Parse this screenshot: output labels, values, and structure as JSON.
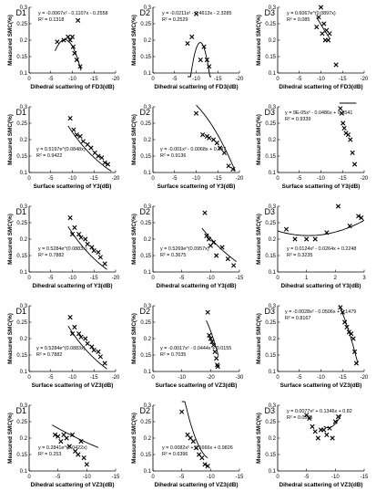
{
  "chart_data": [
    {
      "type": "scatter",
      "panel": "D1",
      "eq": "y = -0.0067x² - 0.1107x - 0.2558",
      "r2": "R² = 0.1318",
      "xlabel": "Dihedral scattering of FD3(dB)",
      "ylabel": "Measured SMC(%)",
      "xlim": [
        0,
        -20
      ],
      "ylim": [
        0.1,
        0.3
      ],
      "xticks": [
        "0",
        "-5",
        "-10",
        "-15",
        "-20"
      ],
      "yticks": [
        "0.1",
        "0.15",
        "0.2",
        "0.25",
        "0.3"
      ],
      "points": [
        [
          -6.5,
          0.195
        ],
        [
          -8,
          0.2
        ],
        [
          -9,
          0.21
        ],
        [
          -9.5,
          0.2
        ],
        [
          -10,
          0.21
        ],
        [
          -10.2,
          0.18
        ],
        [
          -10.5,
          0.16
        ],
        [
          -11,
          0.14
        ],
        [
          -11.3,
          0.26
        ],
        [
          -11.8,
          0.12
        ]
      ],
      "fit": {
        "kind": "poly2",
        "c": [
          -0.0067,
          -0.1107,
          -0.2558
        ],
        "range": [
          -6,
          -12
        ]
      }
    },
    {
      "type": "scatter",
      "panel": "D2",
      "eq": "y = -0.0211x² - 0.4613x - 2.3285",
      "r2": "R² = 0.2529",
      "xlabel": "Dihedral scattering of FD3(dB)",
      "ylabel": "Measured SMC(%)",
      "xlim": [
        0,
        -20
      ],
      "ylim": [
        0.1,
        0.3
      ],
      "xticks": [
        "0",
        "-5",
        "-10",
        "-15",
        "-20"
      ],
      "yticks": [
        "0.1",
        "0.15",
        "0.2",
        "0.25",
        "0.3"
      ],
      "points": [
        [
          -8,
          0.19
        ],
        [
          -9,
          0.21
        ],
        [
          -10,
          0.28
        ],
        [
          -11,
          0.14
        ],
        [
          -11.8,
          0.18
        ],
        [
          -12.5,
          0.14
        ],
        [
          -13,
          0.12
        ]
      ],
      "fit": {
        "kind": "poly2",
        "c": [
          -0.0211,
          -0.4613,
          -2.3285
        ],
        "range": [
          -8,
          -13.5
        ]
      }
    },
    {
      "type": "scatter",
      "panel": "D3",
      "eq": "y = 0.6067e^(0.0897x)",
      "r2": "R² = 0.085",
      "xlabel": "Dihedral scattering of FD3(dB)",
      "ylabel": "Measured SMC(%)",
      "xlim": [
        0,
        -20
      ],
      "ylim": [
        0.1,
        0.3
      ],
      "xticks": [
        "0",
        "-5",
        "-10",
        "-15",
        "-20"
      ],
      "yticks": [
        "0.1",
        "0.15",
        "0.2",
        "0.25",
        "0.3"
      ],
      "points": [
        [
          -9,
          0.24
        ],
        [
          -9.5,
          0.27
        ],
        [
          -10,
          0.3
        ],
        [
          -10.3,
          0.22
        ],
        [
          -10.7,
          0.25
        ],
        [
          -11,
          0.2
        ],
        [
          -11.3,
          0.23
        ],
        [
          -11.7,
          0.2
        ],
        [
          -12,
          0.22
        ],
        [
          -13.5,
          0.125
        ]
      ],
      "fit": {
        "kind": "exp",
        "a": 0.6067,
        "b": 0.0897,
        "range": [
          -9,
          -12
        ]
      }
    },
    {
      "type": "scatter",
      "panel": "D1",
      "eq": "y = 0.5197e^(0.0848x)",
      "r2": "R² = 0.9422",
      "xlabel": "Surface scattering of Y3(dB)",
      "ylabel": "Measured SMC(%)",
      "xlim": [
        0,
        -20
      ],
      "ylim": [
        0.1,
        0.3
      ],
      "xticks": [
        "0",
        "-5",
        "-10",
        "-15",
        "-20"
      ],
      "yticks": [
        "0.1",
        "0.15",
        "0.2",
        "0.25",
        "0.3"
      ],
      "points": [
        [
          -9.5,
          0.265
        ],
        [
          -10.3,
          0.23
        ],
        [
          -11,
          0.215
        ],
        [
          -11.8,
          0.21
        ],
        [
          -12.5,
          0.195
        ],
        [
          -13.5,
          0.185
        ],
        [
          -14.3,
          0.175
        ],
        [
          -15.2,
          0.16
        ],
        [
          -16,
          0.15
        ],
        [
          -16.8,
          0.145
        ],
        [
          -17.5,
          0.13
        ],
        [
          -18.2,
          0.125
        ]
      ],
      "fit": {
        "kind": "exp",
        "a": 0.5197,
        "b": 0.0848,
        "range": [
          -9,
          -19
        ]
      }
    },
    {
      "type": "scatter",
      "panel": "D2",
      "eq": "y = -0.001x² - 0.0068x + 0.337",
      "r2": "R² = 0.9136",
      "xlabel": "Surface scattering of Y3(dB)",
      "ylabel": "Measured SMC(%)",
      "xlim": [
        0,
        -20
      ],
      "ylim": [
        0.1,
        0.3
      ],
      "xticks": [
        "0",
        "-5",
        "-10",
        "-15",
        "-20"
      ],
      "yticks": [
        "0.1",
        "0.15",
        "0.2",
        "0.25",
        "0.3"
      ],
      "points": [
        [
          -10,
          0.28
        ],
        [
          -11.5,
          0.215
        ],
        [
          -12.5,
          0.21
        ],
        [
          -13,
          0.205
        ],
        [
          -14,
          0.2
        ],
        [
          -14.8,
          0.19
        ],
        [
          -15.5,
          0.175
        ],
        [
          -16.5,
          0.16
        ],
        [
          -17.5,
          0.12
        ],
        [
          -18.5,
          0.11
        ]
      ],
      "fit": {
        "kind": "poly2",
        "c": [
          -0.001,
          -0.0068,
          0.337
        ],
        "range": [
          -10,
          -19
        ]
      }
    },
    {
      "type": "scatter",
      "panel": "D3",
      "eq": "y = 9E-05x² - 0.0486x + 0.9541",
      "r2": "R² = 0.9339",
      "xlabel": "Surface scattering of Y3(dB)",
      "ylabel": "Measured SMC(%)",
      "xlim": [
        0,
        -20
      ],
      "ylim": [
        0.1,
        0.3
      ],
      "xticks": [
        "0",
        "-5",
        "-10",
        "-15",
        "-20"
      ],
      "yticks": [
        "0.1",
        "0.15",
        "0.2",
        "0.25",
        "0.3"
      ],
      "points": [
        [
          -14.5,
          0.295
        ],
        [
          -14.8,
          0.28
        ],
        [
          -15.1,
          0.25
        ],
        [
          -15.4,
          0.235
        ],
        [
          -15.8,
          0.22
        ],
        [
          -16.3,
          0.215
        ],
        [
          -16.8,
          0.2
        ],
        [
          -17.3,
          0.16
        ],
        [
          -17.8,
          0.125
        ]
      ],
      "fit": {
        "kind": "poly2",
        "c": [
          9e-05,
          -0.0486,
          0.9541
        ],
        "range": [
          -14.3,
          -18.2
        ]
      }
    },
    {
      "type": "scatter",
      "panel": "D1",
      "eq": "y = 0.5284e^(0.0883x)",
      "r2": "R² = 0.7882",
      "xlabel": "Dihedral scattering of Y3(dB)",
      "ylabel": "Measured SMC(%)",
      "xlim": [
        0,
        -20
      ],
      "ylim": [
        0.1,
        0.3
      ],
      "xticks": [
        "0",
        "-5",
        "-10",
        "-15",
        "-20"
      ],
      "yticks": [
        "0.1",
        "0.15",
        "0.2",
        "0.25",
        "0.3"
      ],
      "points": [
        [
          -9.5,
          0.265
        ],
        [
          -10,
          0.215
        ],
        [
          -10.5,
          0.235
        ],
        [
          -11.5,
          0.215
        ],
        [
          -12,
          0.205
        ],
        [
          -13,
          0.2
        ],
        [
          -13.5,
          0.185
        ],
        [
          -14.5,
          0.175
        ],
        [
          -15,
          0.165
        ],
        [
          -16,
          0.16
        ],
        [
          -16.5,
          0.145
        ],
        [
          -17.5,
          0.125
        ]
      ],
      "fit": {
        "kind": "exp",
        "a": 0.5284,
        "b": 0.0883,
        "range": [
          -9,
          -18
        ]
      }
    },
    {
      "type": "scatter",
      "panel": "D2",
      "eq": "y = 0.5269e^(0.0957x)",
      "r2": "R² = 0.3675",
      "xlabel": "Dihedral scattering of Y3(dB)",
      "ylabel": "Measured SMC(%)",
      "xlim": [
        0,
        -15
      ],
      "ylim": [
        0.1,
        0.3
      ],
      "xticks": [
        "0",
        "-5",
        "-10",
        "-15"
      ],
      "yticks": [
        "0.1",
        "0.15",
        "0.2",
        "0.25",
        "0.3"
      ],
      "points": [
        [
          -9,
          0.28
        ],
        [
          -9.3,
          0.21
        ],
        [
          -9.7,
          0.2
        ],
        [
          -10,
          0.18
        ],
        [
          -10.5,
          0.19
        ],
        [
          -11,
          0.15
        ],
        [
          -12,
          0.175
        ],
        [
          -13,
          0.14
        ],
        [
          -14,
          0.12
        ]
      ],
      "fit": {
        "kind": "exp",
        "a": 0.5269,
        "b": 0.0957,
        "range": [
          -8.5,
          -14.5
        ]
      }
    },
    {
      "type": "scatter",
      "panel": "D3",
      "eq": "y = 0.0124x² - 0.0264x + 0.2248",
      "r2": "R² = 0.3235",
      "xlabel": "Dihedral scattering of Y3(dB)",
      "ylabel": "Measured SMC(%)",
      "xlim": [
        0,
        3
      ],
      "ylim": [
        0.1,
        0.3
      ],
      "xticks": [
        "0",
        "1",
        "2",
        "3"
      ],
      "yticks": [
        "0.1",
        "0.15",
        "0.2",
        "0.25",
        "0.3"
      ],
      "points": [
        [
          0.3,
          0.23
        ],
        [
          0.6,
          0.2
        ],
        [
          1.0,
          0.2
        ],
        [
          1.3,
          0.2
        ],
        [
          1.7,
          0.22
        ],
        [
          2.1,
          0.3
        ],
        [
          2.5,
          0.24
        ],
        [
          2.8,
          0.27
        ],
        [
          2.9,
          0.265
        ]
      ],
      "fit": {
        "kind": "poly2",
        "c": [
          0.0124,
          -0.0264,
          0.2248
        ],
        "range": [
          0,
          3
        ]
      }
    },
    {
      "type": "scatter",
      "panel": "D1",
      "eq": "y = 0.5284e^(0.0883x)",
      "r2": "R² = 0.7882",
      "xlabel": "Surface scattering of VZ3(dB)",
      "ylabel": "Measured SMC(%)",
      "xlim": [
        0,
        -20
      ],
      "ylim": [
        0.1,
        0.3
      ],
      "xticks": [
        "0",
        "-5",
        "-10",
        "-15",
        "-20"
      ],
      "yticks": [
        "0.1",
        "0.15",
        "0.2",
        "0.25",
        "0.3"
      ],
      "points": [
        [
          -9.5,
          0.265
        ],
        [
          -10,
          0.215
        ],
        [
          -10.5,
          0.235
        ],
        [
          -11.5,
          0.215
        ],
        [
          -12,
          0.205
        ],
        [
          -13,
          0.2
        ],
        [
          -13.5,
          0.185
        ],
        [
          -14.5,
          0.175
        ],
        [
          -15,
          0.165
        ],
        [
          -16,
          0.16
        ],
        [
          -16.5,
          0.145
        ],
        [
          -17.5,
          0.125
        ]
      ],
      "fit": {
        "kind": "exp",
        "a": 0.5284,
        "b": 0.0883,
        "range": [
          -9,
          -18
        ]
      }
    },
    {
      "type": "scatter",
      "panel": "D2",
      "eq": "y = -0.0017x² - 0.0444x + 0.0155",
      "r2": "R² = 0.7035",
      "xlabel": "Surface scattering of VZ3(dB)",
      "ylabel": "Measured SMC(%)",
      "xlim": [
        0,
        -30
      ],
      "ylim": [
        0.1,
        0.3
      ],
      "xticks": [
        "0",
        "-10",
        "-20",
        "-30"
      ],
      "yticks": [
        "0.1",
        "0.15",
        "0.2",
        "0.25",
        "0.3"
      ],
      "points": [
        [
          -19,
          0.28
        ],
        [
          -19.5,
          0.21
        ],
        [
          -20,
          0.2
        ],
        [
          -20.5,
          0.19
        ],
        [
          -21,
          0.18
        ],
        [
          -21.5,
          0.16
        ],
        [
          -22,
          0.14
        ],
        [
          -22.3,
          0.12
        ],
        [
          -22.5,
          0.115
        ]
      ],
      "fit": {
        "kind": "poly2",
        "c": [
          -0.0017,
          -0.0444,
          0.0155
        ],
        "range": [
          -18.5,
          -22.7
        ]
      }
    },
    {
      "type": "scatter",
      "panel": "D3",
      "eq": "y = -0.0028x² - 0.0506x + 0.1479",
      "r2": "R² = 0.8167",
      "xlabel": "Surface scattering of VZ3(dB)",
      "ylabel": "Measured SMC(%)",
      "xlim": [
        0,
        -20
      ],
      "ylim": [
        0.1,
        0.3
      ],
      "xticks": [
        "0",
        "-5",
        "-10",
        "-15",
        "-20"
      ],
      "yticks": [
        "0.1",
        "0.15",
        "0.2",
        "0.25",
        "0.3"
      ],
      "points": [
        [
          -14.5,
          0.295
        ],
        [
          -15,
          0.28
        ],
        [
          -15.5,
          0.25
        ],
        [
          -16,
          0.235
        ],
        [
          -16.5,
          0.22
        ],
        [
          -17,
          0.215
        ],
        [
          -17.5,
          0.2
        ],
        [
          -17.8,
          0.16
        ],
        [
          -18.2,
          0.125
        ]
      ],
      "fit": {
        "kind": "poly2",
        "c": [
          -0.0028,
          -0.0506,
          0.1479
        ],
        "range": [
          -14.2,
          -18.5
        ]
      }
    },
    {
      "type": "scatter",
      "panel": "D1",
      "eq": "y = 0.2841e^(0.0422x)",
      "r2": "R² = 0.253",
      "xlabel": "Dihedral scattering of VZ3(dB)",
      "ylabel": "Measured SMC(%)",
      "xlim": [
        0,
        -15
      ],
      "ylim": [
        0.1,
        0.3
      ],
      "xticks": [
        "0",
        "-5",
        "-10",
        "-15"
      ],
      "yticks": [
        "0.1",
        "0.15",
        "0.2",
        "0.25",
        "0.3"
      ],
      "points": [
        [
          -4.5,
          0.21
        ],
        [
          -5,
          0.205
        ],
        [
          -5.5,
          0.19
        ],
        [
          -6,
          0.21
        ],
        [
          -6.5,
          0.2
        ],
        [
          -7,
          0.175
        ],
        [
          -7.5,
          0.21
        ],
        [
          -8,
          0.16
        ],
        [
          -8.5,
          0.15
        ],
        [
          -9,
          0.19
        ],
        [
          -9.5,
          0.14
        ],
        [
          -10,
          0.12
        ]
      ],
      "fit": {
        "kind": "exp",
        "a": 0.2841,
        "b": 0.0422,
        "range": [
          -4,
          -12
        ]
      }
    },
    {
      "type": "scatter",
      "panel": "D2",
      "eq": "y = 0.0082x² + 0.1666x + 0.9826",
      "r2": "R² = 0.6396",
      "xlabel": "Dihedral scattering of VZ3(dB)",
      "ylabel": "Measured SMC(%)",
      "xlim": [
        0,
        -15
      ],
      "ylim": [
        0.1,
        0.3
      ],
      "xticks": [
        "0",
        "-5",
        "-10",
        "-15"
      ],
      "yticks": [
        "0.1",
        "0.15",
        "0.2",
        "0.25",
        "0.3"
      ],
      "points": [
        [
          -5,
          0.28
        ],
        [
          -6,
          0.21
        ],
        [
          -6.5,
          0.2
        ],
        [
          -7,
          0.19
        ],
        [
          -7.5,
          0.17
        ],
        [
          -8,
          0.15
        ],
        [
          -8.5,
          0.14
        ],
        [
          -9,
          0.12
        ],
        [
          -9.5,
          0.115
        ]
      ],
      "fit": {
        "kind": "poly2",
        "c": [
          0.0082,
          0.1666,
          0.9826
        ],
        "range": [
          -5,
          -9.5
        ]
      }
    },
    {
      "type": "scatter",
      "panel": "D3",
      "eq": "y = 0.0077x² + 0.1346x + 0.82",
      "r2": "R² = 0.0535",
      "xlabel": "Dihedral scattering of VZ3(dB)",
      "ylabel": "Measured SMC(%)",
      "xlim": [
        0,
        -15
      ],
      "ylim": [
        0.1,
        0.3
      ],
      "xticks": [
        "0",
        "-5",
        "-10",
        "-15"
      ],
      "yticks": [
        "0.1",
        "0.15",
        "0.2",
        "0.25",
        "0.3"
      ],
      "points": [
        [
          -5,
          0.27
        ],
        [
          -5.5,
          0.26
        ],
        [
          -6,
          0.235
        ],
        [
          -6.5,
          0.22
        ],
        [
          -7,
          0.2
        ],
        [
          -7.5,
          0.225
        ],
        [
          -8,
          0.225
        ],
        [
          -8.5,
          0.21
        ],
        [
          -9,
          0.23
        ],
        [
          -9.5,
          0.2
        ],
        [
          -10,
          0.25
        ],
        [
          -10.5,
          0.265
        ]
      ],
      "fit": {
        "kind": "poly2",
        "c": [
          0.0077,
          0.1346,
          0.82
        ],
        "range": [
          -8,
          -11
        ]
      }
    }
  ]
}
